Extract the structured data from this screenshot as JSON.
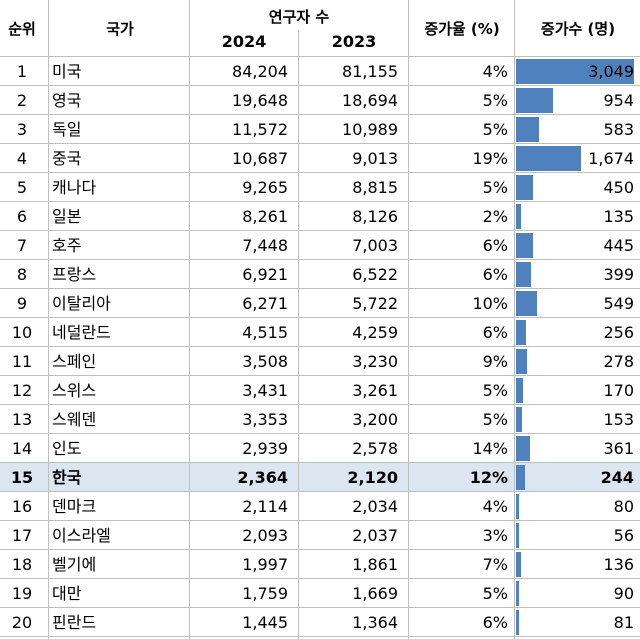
{
  "headers": {
    "rank": "순위",
    "country": "국가",
    "researchers": "연구자 수",
    "year_2024": "2024",
    "year_2023": "2023",
    "rate": "증가율 (%)",
    "increase": "증가수 (명)"
  },
  "highlight_color": "#dce6f1",
  "bar_color": "#4f81bd",
  "chart_data": {
    "type": "table",
    "columns": [
      "순위",
      "국가",
      "2024",
      "2023",
      "증가율 (%)",
      "증가수 (명)"
    ],
    "highlighted_rank": "15",
    "bar_max": 3049,
    "rows": [
      {
        "rank": "1",
        "country": "미국",
        "v2024": "84,204",
        "v2023": "81,155",
        "rate": "4%",
        "inc": "3,049",
        "inc_value": 3049
      },
      {
        "rank": "2",
        "country": "영국",
        "v2024": "19,648",
        "v2023": "18,694",
        "rate": "5%",
        "inc": "954",
        "inc_value": 954
      },
      {
        "rank": "3",
        "country": "독일",
        "v2024": "11,572",
        "v2023": "10,989",
        "rate": "5%",
        "inc": "583",
        "inc_value": 583
      },
      {
        "rank": "4",
        "country": "중국",
        "v2024": "10,687",
        "v2023": "9,013",
        "rate": "19%",
        "inc": "1,674",
        "inc_value": 1674
      },
      {
        "rank": "5",
        "country": "캐나다",
        "v2024": "9,265",
        "v2023": "8,815",
        "rate": "5%",
        "inc": "450",
        "inc_value": 450
      },
      {
        "rank": "6",
        "country": "일본",
        "v2024": "8,261",
        "v2023": "8,126",
        "rate": "2%",
        "inc": "135",
        "inc_value": 135
      },
      {
        "rank": "7",
        "country": "호주",
        "v2024": "7,448",
        "v2023": "7,003",
        "rate": "6%",
        "inc": "445",
        "inc_value": 445
      },
      {
        "rank": "8",
        "country": "프랑스",
        "v2024": "6,921",
        "v2023": "6,522",
        "rate": "6%",
        "inc": "399",
        "inc_value": 399
      },
      {
        "rank": "9",
        "country": "이탈리아",
        "v2024": "6,271",
        "v2023": "5,722",
        "rate": "10%",
        "inc": "549",
        "inc_value": 549
      },
      {
        "rank": "10",
        "country": "네덜란드",
        "v2024": "4,515",
        "v2023": "4,259",
        "rate": "6%",
        "inc": "256",
        "inc_value": 256
      },
      {
        "rank": "11",
        "country": "스페인",
        "v2024": "3,508",
        "v2023": "3,230",
        "rate": "9%",
        "inc": "278",
        "inc_value": 278
      },
      {
        "rank": "12",
        "country": "스위스",
        "v2024": "3,431",
        "v2023": "3,261",
        "rate": "5%",
        "inc": "170",
        "inc_value": 170
      },
      {
        "rank": "13",
        "country": "스웨덴",
        "v2024": "3,353",
        "v2023": "3,200",
        "rate": "5%",
        "inc": "153",
        "inc_value": 153
      },
      {
        "rank": "14",
        "country": "인도",
        "v2024": "2,939",
        "v2023": "2,578",
        "rate": "14%",
        "inc": "361",
        "inc_value": 361
      },
      {
        "rank": "15",
        "country": "한국",
        "v2024": "2,364",
        "v2023": "2,120",
        "rate": "12%",
        "inc": "244",
        "inc_value": 244
      },
      {
        "rank": "16",
        "country": "덴마크",
        "v2024": "2,114",
        "v2023": "2,034",
        "rate": "4%",
        "inc": "80",
        "inc_value": 80
      },
      {
        "rank": "17",
        "country": "이스라엘",
        "v2024": "2,093",
        "v2023": "2,037",
        "rate": "3%",
        "inc": "56",
        "inc_value": 56
      },
      {
        "rank": "18",
        "country": "벨기에",
        "v2024": "1,997",
        "v2023": "1,861",
        "rate": "7%",
        "inc": "136",
        "inc_value": 136
      },
      {
        "rank": "19",
        "country": "대만",
        "v2024": "1,759",
        "v2023": "1,669",
        "rate": "5%",
        "inc": "90",
        "inc_value": 90
      },
      {
        "rank": "20",
        "country": "핀란드",
        "v2024": "1,445",
        "v2023": "1,364",
        "rate": "6%",
        "inc": "81",
        "inc_value": 81
      }
    ]
  }
}
